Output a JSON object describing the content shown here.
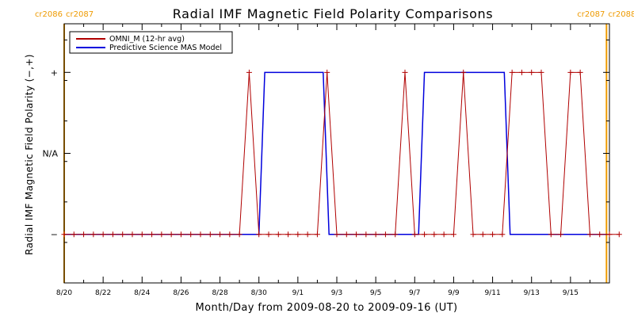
{
  "colors": {
    "omni": "#b00000",
    "model": "#0000dd",
    "carrington": "#ee9a00",
    "axis": "#000000"
  },
  "chart_data": {
    "type": "line",
    "title": "Radial IMF Magnetic Field Polarity Comparisons",
    "xlabel": "Month/Day from 2009-08-20 to 2009-09-16 (UT)",
    "ylabel": "Radial IMF Magnetic Field Polarity (−,+)",
    "x_unit": "days",
    "xlim": [
      0,
      28
    ],
    "ylim": [
      -1.6,
      1.6
    ],
    "x_ticks": [
      {
        "x": 0,
        "label": "8/20"
      },
      {
        "x": 2,
        "label": "8/22"
      },
      {
        "x": 4,
        "label": "8/24"
      },
      {
        "x": 6,
        "label": "8/26"
      },
      {
        "x": 8,
        "label": "8/28"
      },
      {
        "x": 10,
        "label": "8/30"
      },
      {
        "x": 12,
        "label": "9/1"
      },
      {
        "x": 14,
        "label": "9/3"
      },
      {
        "x": 16,
        "label": "9/5"
      },
      {
        "x": 18,
        "label": "9/7"
      },
      {
        "x": 20,
        "label": "9/9"
      },
      {
        "x": 22,
        "label": "9/11"
      },
      {
        "x": 24,
        "label": "9/13"
      },
      {
        "x": 26,
        "label": "9/15"
      }
    ],
    "y_ticks": [
      {
        "y": 1,
        "label": "+"
      },
      {
        "y": 0,
        "label": "N/A"
      },
      {
        "y": -1,
        "label": "−"
      }
    ],
    "legend": {
      "placement": "top-left",
      "entries": [
        "OMNI_M (12-hr avg)",
        "Predictive Science MAS Model"
      ]
    },
    "carrington_markers": [
      {
        "x": 0,
        "left_label": "cr2086",
        "right_label": "cr2087"
      },
      {
        "x": 27.85,
        "left_label": "cr2087",
        "right_label": "cr2088"
      }
    ],
    "series": [
      {
        "name": "OMNI_M (12-hr avg)",
        "color": "#b00000",
        "markers": true,
        "step": 0.5,
        "x_start": 0,
        "y": [
          -1,
          -1,
          -1,
          -1,
          -1,
          -1,
          -1,
          -1,
          -1,
          -1,
          -1,
          -1,
          -1,
          -1,
          -1,
          -1,
          -1,
          -1,
          -1,
          1,
          -1,
          -1,
          -1,
          -1,
          -1,
          -1,
          -1,
          1,
          -1,
          -1,
          -1,
          -1,
          -1,
          -1,
          -1,
          1,
          -1,
          -1,
          -1,
          -1,
          -1,
          1,
          -1,
          -1,
          -1,
          -1,
          1,
          1,
          1,
          1,
          -1,
          -1,
          1,
          1,
          -1,
          -1,
          -1,
          -1
        ]
      },
      {
        "name": "Predictive Science MAS Model",
        "color": "#0000dd",
        "markers": false,
        "points": [
          [
            0,
            -1
          ],
          [
            10.0,
            -1
          ],
          [
            10.3,
            1
          ],
          [
            13.3,
            1
          ],
          [
            13.6,
            -1
          ],
          [
            18.2,
            -1
          ],
          [
            18.5,
            1
          ],
          [
            22.6,
            1
          ],
          [
            22.9,
            -1
          ],
          [
            27.85,
            -1
          ]
        ]
      }
    ]
  }
}
